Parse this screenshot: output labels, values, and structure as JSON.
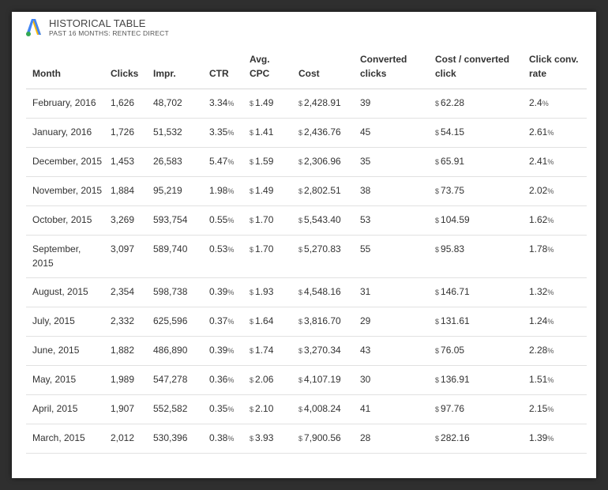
{
  "header": {
    "title": "HISTORICAL TABLE",
    "subtitle": "PAST 16 MONTHS: RENTEC DIRECT"
  },
  "colors": {
    "logo_blue": "#4285f4",
    "logo_yellow": "#fbbc05",
    "logo_green": "#34a853"
  },
  "icons": {
    "logo": "google-adwords-logo-icon"
  },
  "currency_symbol": "$",
  "percent_symbol": "%",
  "columns": [
    [
      "Month",
      ""
    ],
    [
      "Clicks",
      ""
    ],
    [
      "Impr.",
      ""
    ],
    [
      "CTR",
      ""
    ],
    [
      "Avg.",
      "CPC"
    ],
    [
      "Cost",
      ""
    ],
    [
      "Converted",
      "clicks"
    ],
    [
      "Cost / converted",
      "click"
    ],
    [
      "Click conv.",
      "rate"
    ]
  ],
  "rows": [
    {
      "month": "February, 2016",
      "clicks": "1,626",
      "impr": "48,702",
      "ctr": "3.34",
      "cpc": "1.49",
      "cost": "2,428.91",
      "conv": "39",
      "cpconv": "62.28",
      "rate": "2.4"
    },
    {
      "month": "January, 2016",
      "clicks": "1,726",
      "impr": "51,532",
      "ctr": "3.35",
      "cpc": "1.41",
      "cost": "2,436.76",
      "conv": "45",
      "cpconv": "54.15",
      "rate": "2.61"
    },
    {
      "month": "December, 2015",
      "clicks": "1,453",
      "impr": "26,583",
      "ctr": "5.47",
      "cpc": "1.59",
      "cost": "2,306.96",
      "conv": "35",
      "cpconv": "65.91",
      "rate": "2.41"
    },
    {
      "month": "November, 2015",
      "clicks": "1,884",
      "impr": "95,219",
      "ctr": "1.98",
      "cpc": "1.49",
      "cost": "2,802.51",
      "conv": "38",
      "cpconv": "73.75",
      "rate": "2.02"
    },
    {
      "month": "October, 2015",
      "clicks": "3,269",
      "impr": "593,754",
      "ctr": "0.55",
      "cpc": "1.70",
      "cost": "5,543.40",
      "conv": "53",
      "cpconv": "104.59",
      "rate": "1.62"
    },
    {
      "month": "September, 2015",
      "clicks": "3,097",
      "impr": "589,740",
      "ctr": "0.53",
      "cpc": "1.70",
      "cost": "5,270.83",
      "conv": "55",
      "cpconv": "95.83",
      "rate": "1.78"
    },
    {
      "month": "August, 2015",
      "clicks": "2,354",
      "impr": "598,738",
      "ctr": "0.39",
      "cpc": "1.93",
      "cost": "4,548.16",
      "conv": "31",
      "cpconv": "146.71",
      "rate": "1.32"
    },
    {
      "month": "July, 2015",
      "clicks": "2,332",
      "impr": "625,596",
      "ctr": "0.37",
      "cpc": "1.64",
      "cost": "3,816.70",
      "conv": "29",
      "cpconv": "131.61",
      "rate": "1.24"
    },
    {
      "month": "June, 2015",
      "clicks": "1,882",
      "impr": "486,890",
      "ctr": "0.39",
      "cpc": "1.74",
      "cost": "3,270.34",
      "conv": "43",
      "cpconv": "76.05",
      "rate": "2.28"
    },
    {
      "month": "May, 2015",
      "clicks": "1,989",
      "impr": "547,278",
      "ctr": "0.36",
      "cpc": "2.06",
      "cost": "4,107.19",
      "conv": "30",
      "cpconv": "136.91",
      "rate": "1.51"
    },
    {
      "month": "April, 2015",
      "clicks": "1,907",
      "impr": "552,582",
      "ctr": "0.35",
      "cpc": "2.10",
      "cost": "4,008.24",
      "conv": "41",
      "cpconv": "97.76",
      "rate": "2.15"
    },
    {
      "month": "March, 2015",
      "clicks": "2,012",
      "impr": "530,396",
      "ctr": "0.38",
      "cpc": "3.93",
      "cost": "7,900.56",
      "conv": "28",
      "cpconv": "282.16",
      "rate": "1.39"
    }
  ]
}
